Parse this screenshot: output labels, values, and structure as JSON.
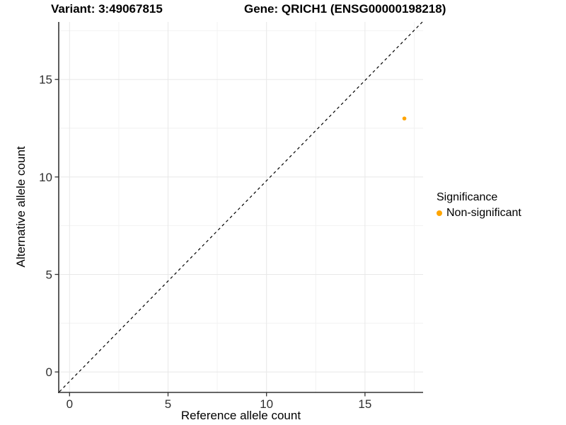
{
  "header": {
    "variant_title": "Variant: 3:49067815",
    "gene_title": "Gene: QRICH1 (ENSG00000198218)"
  },
  "chart_data": {
    "type": "scatter",
    "xlabel": "Reference allele count",
    "ylabel": "Alternative allele count",
    "xlim": [
      -0.55,
      17.95
    ],
    "ylim": [
      -1.05,
      17.95
    ],
    "x_ticks": [
      0,
      5,
      10,
      15
    ],
    "y_ticks": [
      0,
      5,
      10,
      15
    ],
    "x_minor_ticks": [
      2.5,
      7.5,
      12.5,
      17.5
    ],
    "y_minor_ticks": [
      2.5,
      7.5,
      12.5,
      17.5
    ],
    "grid": "major+minor",
    "reference_line": {
      "kind": "identity y=x diagonal",
      "style": "dashed",
      "color": "#000000"
    },
    "series": [
      {
        "name": "Non-significant",
        "color": "#FFA500",
        "marker": "circle",
        "points": [
          [
            17,
            13
          ]
        ]
      }
    ],
    "legend": {
      "title": "Significance",
      "position": "right",
      "entries": [
        {
          "label": "Non-significant",
          "color": "#FFA500"
        }
      ]
    }
  },
  "style": {
    "background": "#FFFFFF",
    "grid_major": "#E8E8E8",
    "grid_minor": "#F2F2F2",
    "axis_color": "#333333",
    "tick_label_color": "#303030",
    "point_color": "#FFA500"
  }
}
